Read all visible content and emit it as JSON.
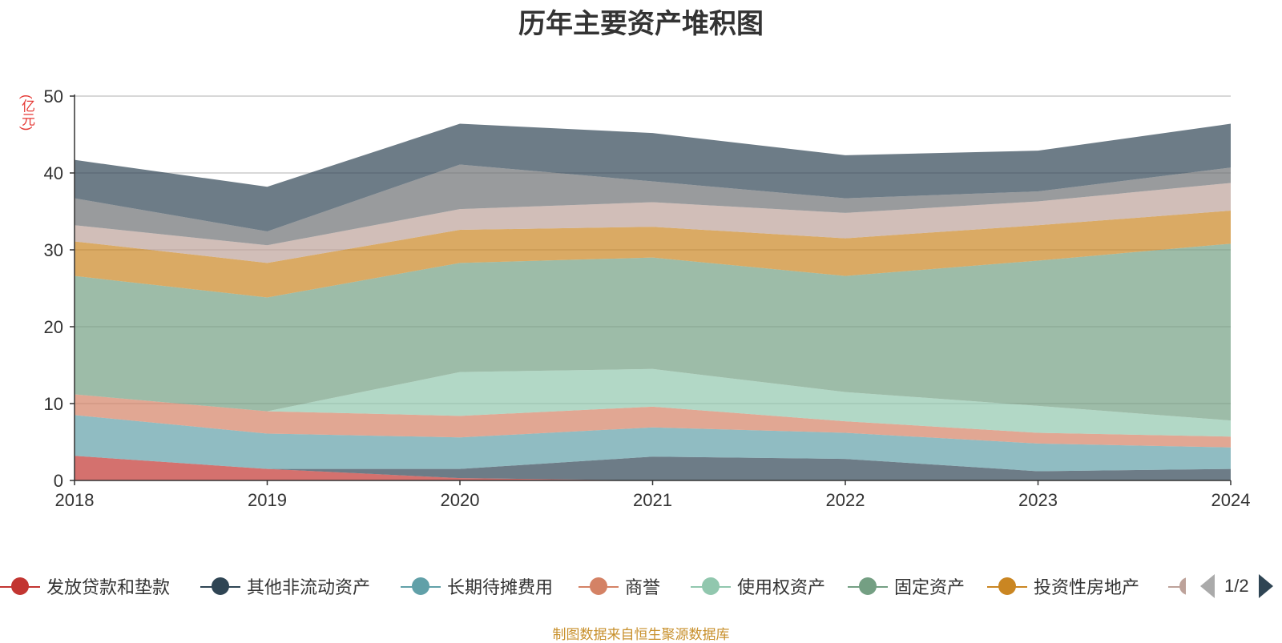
{
  "title": "历年主要资产堆积图",
  "y_unit": "(亿元)",
  "source_note": "制图数据来自恒生聚源数据库",
  "legend": {
    "page_indicator": "1/2",
    "items": [
      {
        "label": "发放贷款和垫款",
        "color": "#c23531"
      },
      {
        "label": "其他非流动资产",
        "color": "#2f4554"
      },
      {
        "label": "长期待摊费用",
        "color": "#61a0a8"
      },
      {
        "label": "商誉",
        "color": "#d48265"
      },
      {
        "label": "使用权资产",
        "color": "#91c7ae"
      },
      {
        "label": "固定资产",
        "color": "#749f83"
      },
      {
        "label": "投资性房地产",
        "color": "#ca8622"
      }
    ]
  },
  "chart_data": {
    "type": "area",
    "stacked": true,
    "x": [
      "2018",
      "2019",
      "2020",
      "2021",
      "2022",
      "2023",
      "2024"
    ],
    "ylim": [
      0,
      50
    ],
    "yticks": [
      0,
      10,
      20,
      30,
      40,
      50
    ],
    "ylabel": "(亿元)",
    "grid": true,
    "series": [
      {
        "name": "发放贷款和垫款",
        "color": "#c23531",
        "values": [
          3.2,
          1.5,
          0.3,
          0,
          0,
          0,
          0
        ]
      },
      {
        "name": "其他非流动资产",
        "color": "#2f4554",
        "values": [
          0,
          0,
          1.2,
          3.1,
          2.8,
          1.2,
          1.5
        ]
      },
      {
        "name": "长期待摊费用",
        "color": "#61a0a8",
        "values": [
          5.3,
          4.6,
          4.1,
          3.8,
          3.4,
          3.6,
          2.8
        ]
      },
      {
        "name": "商誉",
        "color": "#d48265",
        "values": [
          2.7,
          2.9,
          2.8,
          2.7,
          1.5,
          1.4,
          1.4
        ]
      },
      {
        "name": "使用权资产",
        "color": "#91c7ae",
        "values": [
          0,
          0,
          5.7,
          4.9,
          3.8,
          3.5,
          2.1
        ]
      },
      {
        "name": "固定资产",
        "color": "#749f83",
        "values": [
          15.4,
          14.8,
          14.2,
          14.5,
          15.1,
          18.9,
          23.0
        ]
      },
      {
        "name": "投资性房地产",
        "color": "#ca8622",
        "values": [
          4.5,
          4.5,
          4.3,
          4.0,
          4.9,
          4.6,
          4.3
        ]
      },
      {
        "name": "",
        "color": "#bda29a",
        "values": [
          2.1,
          2.3,
          2.7,
          3.2,
          3.3,
          3.1,
          3.6
        ]
      },
      {
        "name": "",
        "color": "#6e7074",
        "values": [
          3.5,
          1.8,
          5.8,
          2.7,
          1.9,
          1.3,
          2.0
        ]
      },
      {
        "name": "",
        "color": "#2f4554",
        "values": [
          5.0,
          5.8,
          5.3,
          6.3,
          5.6,
          5.3,
          5.7
        ]
      }
    ]
  }
}
